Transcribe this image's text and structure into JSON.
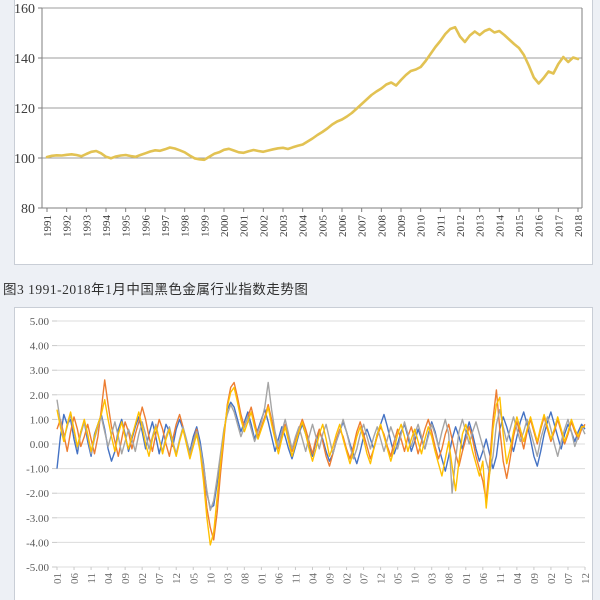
{
  "page": {
    "background": "#edf0f5",
    "card_background": "#ffffff",
    "card_border": "#c9ced6"
  },
  "figure_caption": {
    "text": "图3 1991-2018年1月中国黑色金属行业指数走势图"
  },
  "chart_data": [
    {
      "type": "line",
      "title": "图3 1991-2018年1月中国黑色金属行业指数走势图",
      "xlabel": "",
      "ylabel": "",
      "ylim": [
        80,
        160
      ],
      "grid": true,
      "legend": "none",
      "line_color": "#e2c253",
      "y_tick_labels": [
        "160",
        "140",
        "120",
        "100",
        "80"
      ],
      "x_tick_labels": [
        "1991",
        "1992",
        "1993",
        "1994",
        "1995",
        "1996",
        "1997",
        "1998",
        "1999",
        "2000",
        "2001",
        "2002",
        "2003",
        "2004",
        "2005",
        "2006",
        "2007",
        "2008",
        "2009",
        "2010",
        "2011",
        "2012",
        "2013",
        "2014",
        "2015",
        "2016",
        "2017",
        "2018"
      ],
      "points_per_year": 4,
      "values": [
        100.4,
        100.9,
        101.1,
        101.0,
        101.3,
        101.5,
        101.2,
        100.7,
        101.6,
        102.5,
        102.8,
        101.9,
        100.5,
        99.9,
        100.6,
        101.0,
        101.2,
        100.8,
        100.5,
        101.2,
        101.9,
        102.6,
        103.1,
        102.9,
        103.5,
        104.2,
        103.8,
        103.1,
        102.3,
        101.0,
        99.9,
        99.5,
        99.3,
        100.5,
        101.7,
        102.3,
        103.3,
        103.7,
        103.0,
        102.3,
        102.1,
        102.7,
        103.2,
        102.8,
        102.5,
        103.0,
        103.5,
        103.9,
        104.1,
        103.6,
        104.3,
        104.9,
        105.4,
        106.6,
        107.8,
        109.2,
        110.4,
        111.8,
        113.4,
        114.6,
        115.4,
        116.6,
        118.0,
        119.8,
        121.6,
        123.4,
        125.2,
        126.6,
        127.8,
        129.4,
        130.2,
        129.0,
        131.2,
        133.2,
        134.8,
        135.4,
        136.4,
        138.8,
        141.6,
        144.4,
        146.8,
        149.6,
        151.6,
        152.3,
        148.6,
        146.4,
        149.0,
        150.6,
        149.2,
        150.8,
        151.6,
        150.2,
        150.8,
        149.2,
        147.4,
        145.6,
        144.0,
        141.2,
        137.0,
        132.2,
        129.8,
        132.0,
        134.6,
        133.8,
        137.6,
        140.4,
        138.4,
        140.2,
        139.6
      ]
    },
    {
      "type": "line",
      "title": "",
      "xlabel": "",
      "ylabel": "",
      "ylim": [
        -5,
        5
      ],
      "grid": true,
      "legend": "none",
      "y_tick_labels": [
        "5.00",
        "4.00",
        "3.00",
        "2.00",
        "1.00",
        "0.00",
        "-1.00",
        "-2.00",
        "-3.00",
        "-4.00",
        "-5.00"
      ],
      "x_tick_labels": [
        "01",
        "06",
        "11",
        "04",
        "09",
        "02",
        "07",
        "12",
        "05",
        "10",
        "03",
        "08",
        "01",
        "06",
        "11",
        "04",
        "09",
        "02",
        "07",
        "12",
        "05",
        "10",
        "03",
        "08",
        "01",
        "06",
        "11",
        "04",
        "09",
        "02",
        "07",
        "12"
      ],
      "x_tick_every_n_points": 5,
      "series": [
        {
          "name": "series-blue",
          "color": "#4472c4",
          "values": [
            -1.0,
            0.3,
            1.2,
            0.8,
            1.0,
            0.2,
            -0.4,
            0.5,
            0.9,
            0.1,
            -0.5,
            0.4,
            0.8,
            1.2,
            0.6,
            -0.2,
            -0.7,
            -0.3,
            0.6,
            1.0,
            0.4,
            -0.3,
            0.2,
            0.7,
            1.1,
            0.5,
            -0.2,
            0.4,
            0.9,
            0.3,
            -0.4,
            0.2,
            0.8,
            0.5,
            -0.1,
            0.6,
            1.0,
            0.6,
            0.1,
            -0.3,
            0.3,
            0.7,
            0.1,
            -0.8,
            -2.0,
            -2.6,
            -2.5,
            -1.6,
            -0.6,
            0.5,
            1.4,
            1.7,
            1.5,
            1.0,
            0.5,
            0.9,
            1.3,
            0.8,
            0.2,
            0.6,
            1.0,
            1.4,
            0.9,
            0.3,
            -0.3,
            0.2,
            0.7,
            0.3,
            -0.2,
            -0.6,
            -0.1,
            0.4,
            0.8,
            0.4,
            -0.1,
            -0.5,
            0.1,
            0.5,
            0.2,
            -0.3,
            -0.7,
            -0.4,
            0.1,
            0.5,
            0.9,
            0.5,
            0.0,
            -0.4,
            -0.8,
            -0.3,
            0.3,
            0.6,
            0.2,
            -0.2,
            0.4,
            0.8,
            1.2,
            0.7,
            0.1,
            -0.4,
            0.0,
            0.5,
            0.8,
            0.3,
            -0.3,
            0.1,
            0.6,
            0.2,
            -0.2,
            0.4,
            0.9,
            0.5,
            -0.1,
            -0.6,
            -1.1,
            -0.5,
            0.2,
            0.7,
            0.3,
            -0.2,
            0.4,
            0.9,
            0.4,
            -0.2,
            -0.7,
            -0.3,
            0.2,
            -0.4,
            -1.0,
            -0.5,
            0.6,
            1.1,
            0.7,
            0.2,
            -0.3,
            0.3,
            0.9,
            1.3,
            0.8,
            0.2,
            -0.5,
            -0.9,
            -0.3,
            0.4,
            0.9,
            1.3,
            0.8,
            0.3,
            -0.2,
            0.4,
            0.8,
            0.5,
            0.1,
            0.5,
            0.8,
            0.6
          ]
        },
        {
          "name": "series-orange",
          "color": "#ed7d31",
          "values": [
            0.6,
            1.0,
            0.4,
            -0.3,
            0.5,
            1.1,
            0.6,
            -0.1,
            0.3,
            0.8,
            0.2,
            -0.4,
            0.3,
            1.4,
            2.6,
            1.6,
            0.7,
            0.1,
            -0.5,
            0.2,
            0.9,
            0.5,
            -0.2,
            0.4,
            0.9,
            1.5,
            1.0,
            0.3,
            -0.3,
            0.4,
            1.0,
            0.6,
            0.0,
            -0.5,
            0.2,
            0.8,
            1.2,
            0.7,
            0.1,
            -0.5,
            0.1,
            0.6,
            -0.2,
            -1.2,
            -2.6,
            -3.4,
            -3.9,
            -2.8,
            -1.2,
            0.2,
            1.6,
            2.3,
            2.5,
            1.9,
            1.2,
            0.7,
            1.1,
            1.5,
            0.9,
            0.3,
            0.7,
            1.1,
            1.6,
            1.0,
            0.4,
            -0.2,
            0.4,
            0.8,
            0.3,
            -0.3,
            0.2,
            0.6,
            1.0,
            0.6,
            0.1,
            -0.4,
            0.2,
            0.6,
            0.1,
            -0.5,
            -0.9,
            -0.4,
            0.2,
            0.6,
            0.3,
            -0.2,
            -0.6,
            -0.1,
            0.5,
            0.9,
            0.4,
            -0.1,
            -0.6,
            -0.2,
            0.3,
            0.7,
            0.4,
            -0.1,
            -0.5,
            0.1,
            0.6,
            0.2,
            -0.3,
            0.3,
            0.7,
            0.2,
            -0.4,
            0.1,
            0.6,
            1.0,
            0.5,
            -0.1,
            -0.6,
            -0.2,
            0.4,
            0.8,
            0.2,
            -0.4,
            -0.9,
            -0.3,
            0.2,
            0.7,
            0.2,
            -0.5,
            -1.0,
            -1.5,
            -2.3,
            -0.8,
            1.0,
            2.2,
            0.6,
            -0.7,
            -1.4,
            -0.6,
            0.3,
            0.9,
            0.4,
            -0.2,
            0.5,
            1.0,
            0.5,
            0.0,
            0.6,
            1.1,
            0.6,
            0.1,
            0.5,
            1.0,
            0.5,
            0.0,
            0.4,
            0.9,
            0.5,
            0.2,
            0.6,
            0.8
          ]
        },
        {
          "name": "series-gray",
          "color": "#a5a5a5",
          "values": [
            1.8,
            0.9,
            0.2,
            0.7,
            1.2,
            0.5,
            -0.2,
            0.4,
            0.9,
            0.3,
            -0.4,
            0.2,
            0.7,
            1.1,
            0.5,
            -0.1,
            0.4,
            0.9,
            0.3,
            -0.4,
            0.1,
            0.6,
            0.2,
            -0.3,
            0.4,
            0.9,
            0.4,
            -0.2,
            0.3,
            0.8,
            0.2,
            -0.3,
            0.3,
            0.7,
            0.1,
            -0.4,
            0.2,
            0.7,
            0.2,
            -0.4,
            0.1,
            0.5,
            -0.1,
            -0.9,
            -1.9,
            -2.7,
            -2.3,
            -1.4,
            -0.4,
            0.6,
            1.2,
            1.6,
            1.3,
            0.8,
            0.3,
            0.7,
            1.1,
            0.6,
            0.1,
            0.5,
            0.9,
            1.5,
            2.5,
            1.4,
            0.5,
            -0.1,
            0.5,
            1.0,
            0.4,
            -0.2,
            0.3,
            0.7,
            0.2,
            -0.3,
            0.3,
            0.8,
            0.3,
            -0.2,
            0.4,
            0.8,
            0.2,
            -0.4,
            0.1,
            0.5,
            1.0,
            0.5,
            -0.1,
            -0.6,
            -0.2,
            0.4,
            0.8,
            0.3,
            -0.2,
            0.3,
            0.7,
            0.2,
            -0.3,
            0.2,
            0.7,
            0.3,
            -0.2,
            0.4,
            0.9,
            0.4,
            -0.1,
            0.4,
            0.8,
            0.3,
            -0.2,
            0.3,
            0.8,
            0.4,
            -0.1,
            0.5,
            1.0,
            0.4,
            -2.0,
            -0.6,
            0.5,
            1.0,
            0.5,
            0.0,
            0.5,
            0.9,
            0.4,
            -0.1,
            -0.7,
            -1.2,
            -0.5,
            0.8,
            1.4,
            0.7,
            0.1,
            0.6,
            1.1,
            0.6,
            0.1,
            0.5,
            1.0,
            0.5,
            0.0,
            -0.5,
            0.2,
            0.7,
            1.1,
            0.6,
            0.0,
            -0.5,
            0.1,
            0.6,
            1.0,
            0.5,
            -0.1,
            0.3,
            0.7,
            0.4
          ]
        },
        {
          "name": "series-yellow",
          "color": "#ffc000",
          "values": [
            1.4,
            0.7,
            0.1,
            0.8,
            1.3,
            0.6,
            -0.1,
            0.5,
            1.0,
            0.4,
            -0.3,
            0.3,
            0.8,
            1.2,
            1.8,
            1.0,
            0.3,
            -0.3,
            0.4,
            0.9,
            0.3,
            -0.2,
            0.3,
            0.8,
            1.3,
            0.7,
            0.0,
            -0.5,
            0.2,
            0.7,
            0.2,
            -0.4,
            0.2,
            0.6,
            0.0,
            -0.5,
            0.1,
            0.6,
            0.0,
            -0.6,
            -0.1,
            0.4,
            -0.3,
            -1.5,
            -3.0,
            -4.1,
            -3.6,
            -2.2,
            -0.8,
            0.4,
            1.5,
            2.1,
            2.3,
            1.7,
            1.0,
            0.5,
            0.9,
            1.3,
            0.7,
            0.2,
            0.6,
            1.0,
            1.5,
            0.8,
            0.2,
            -0.4,
            0.2,
            0.7,
            0.1,
            -0.5,
            0.0,
            0.5,
            0.9,
            0.4,
            -0.2,
            -0.7,
            -0.2,
            0.4,
            0.8,
            0.2,
            -0.5,
            -0.1,
            0.4,
            0.8,
            0.2,
            -0.3,
            -0.8,
            -0.3,
            0.3,
            0.7,
            0.2,
            -0.4,
            -0.8,
            -0.2,
            0.4,
            0.8,
            0.3,
            -0.2,
            -0.7,
            -0.2,
            0.4,
            0.8,
            0.3,
            -0.3,
            0.2,
            0.6,
            0.1,
            -0.4,
            0.2,
            0.7,
            0.3,
            -0.3,
            -0.8,
            -1.3,
            -0.6,
            0.1,
            -0.9,
            -1.9,
            -0.7,
            0.4,
            0.8,
            0.3,
            -0.3,
            -0.8,
            -1.3,
            -0.7,
            -2.6,
            -1.2,
            0.6,
            1.6,
            1.9,
            0.4,
            -0.8,
            -0.2,
            0.5,
            1.1,
            0.6,
            0.1,
            0.6,
            1.1,
            0.6,
            0.1,
            0.7,
            1.2,
            0.7,
            0.2,
            0.6,
            1.1,
            0.6,
            0.1,
            0.5,
            1.0,
            0.6,
            0.3,
            0.7,
            0.7
          ]
        }
      ]
    }
  ]
}
